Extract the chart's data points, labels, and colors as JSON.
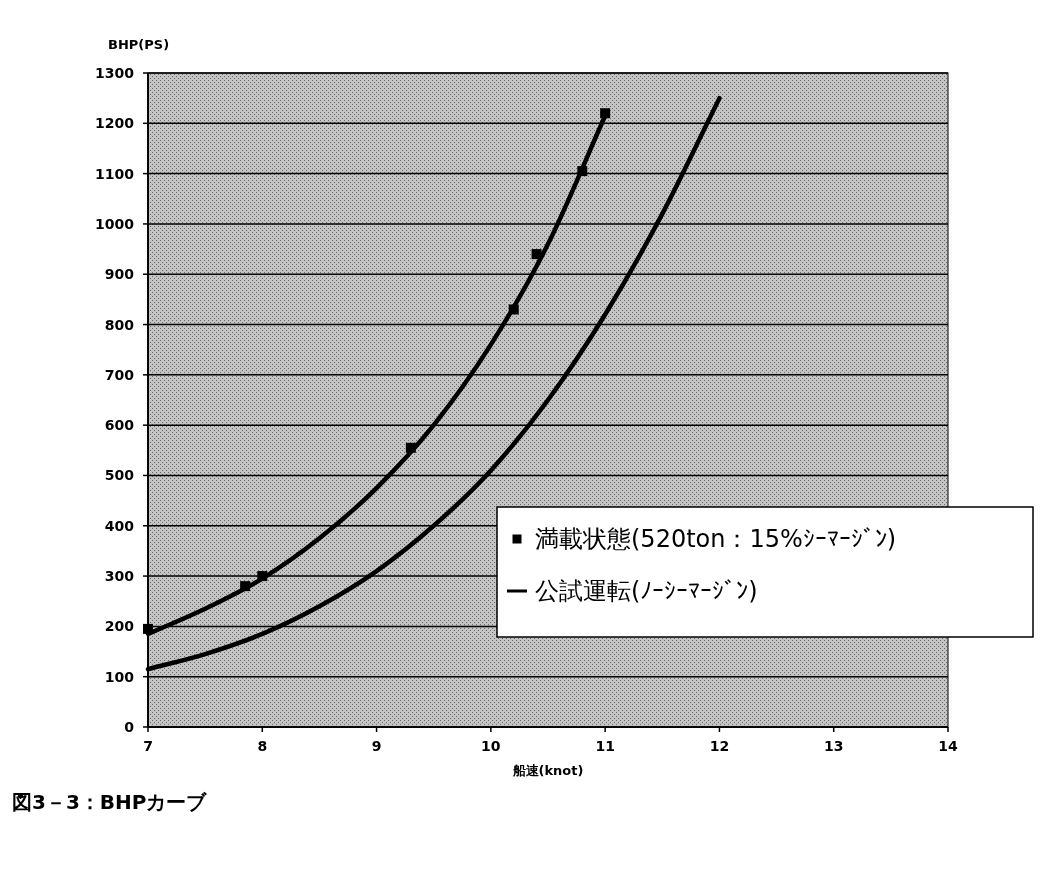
{
  "chart_data": {
    "type": "line",
    "xlabel": "船速(knot)",
    "ylabel": "BHP(PS)",
    "annotations": [
      "図3－3：BHPカーブ"
    ],
    "xlim": [
      7,
      14
    ],
    "xticks": [
      7,
      8,
      9,
      10,
      11,
      12,
      13,
      14
    ],
    "ylim": [
      0,
      1300
    ],
    "yticks": [
      0,
      100,
      200,
      300,
      400,
      500,
      600,
      700,
      800,
      900,
      1000,
      1100,
      1200,
      1300
    ],
    "grid": "y",
    "legend": "bottom right",
    "series": [
      {
        "name": "満載状態(520ton：15%ｼｰﾏｰｼﾞﾝ)",
        "type": "scatter",
        "marker": "square",
        "color": "#000000",
        "x": [
          7,
          7.85,
          8,
          9.3,
          10.2,
          10.4,
          10.8,
          11
        ],
        "values": [
          195,
          280,
          300,
          555,
          830,
          940,
          1105,
          1220
        ]
      },
      {
        "color": "#000000",
        "x": [
          7,
          7.5,
          8,
          8.5,
          9,
          9.5,
          10,
          10.5,
          11
        ],
        "values": [
          185,
          235,
          295,
          375,
          475,
          600,
          760,
          960,
          1215
        ]
      },
      {
        "name": "公試運転(ﾉｰｼｰﾏｰｼﾞﾝ)",
        "color": "#000000",
        "x": [
          7,
          7.5,
          8,
          8.5,
          9,
          9.5,
          10,
          10.5,
          11,
          11.5,
          12
        ],
        "values": [
          115,
          145,
          185,
          240,
          310,
          400,
          510,
          650,
          820,
          1020,
          1250
        ]
      }
    ]
  }
}
